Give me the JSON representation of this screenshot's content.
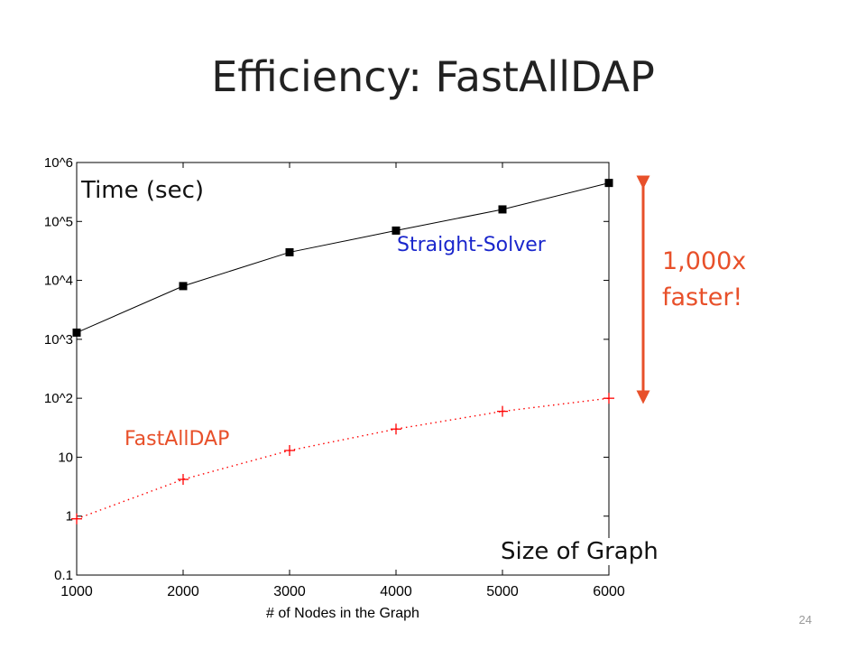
{
  "slide": {
    "title": "Efficiency: FastAllDAP",
    "page_number": "24"
  },
  "annotations": {
    "y_label": "Time (sec)",
    "x_label": "Size of Graph",
    "callout_line1": "1,000x",
    "callout_line2": "faster!"
  },
  "colors": {
    "straight_solver": "#000000",
    "fastalldap": "#ff0000",
    "series_a_label": "#1a26cc",
    "series_b_label": "#e8502a",
    "callout": "#e8502a",
    "axes": "#000000"
  },
  "chart_data": {
    "type": "line",
    "y_scale": "log",
    "xlabel": "# of Nodes in the Graph",
    "ylabel": "",
    "xlim": [
      1000,
      6000
    ],
    "ylim": [
      0.1,
      1000000
    ],
    "x_ticks": [
      1000,
      2000,
      3000,
      4000,
      5000,
      6000
    ],
    "x_tick_labels": [
      "1000",
      "2000",
      "3000",
      "4000",
      "5000",
      "6000"
    ],
    "y_ticks": [
      0.1,
      1,
      10,
      100,
      1000,
      10000,
      100000,
      1000000
    ],
    "y_tick_labels": [
      "0.1",
      "1",
      "10",
      "10^2",
      "10^3",
      "10^4",
      "10^5",
      "10^6"
    ],
    "grid": false,
    "x": [
      1000,
      2000,
      3000,
      4000,
      5000,
      6000
    ],
    "series": [
      {
        "name": "Straight-Solver",
        "values": [
          1300,
          8000,
          30000,
          70000,
          160000,
          450000
        ],
        "color": "#000000",
        "marker": "square",
        "line_style": "solid"
      },
      {
        "name": "FastAllDAP",
        "values": [
          0.9,
          4.2,
          13,
          30,
          60,
          100
        ],
        "color": "#ff0000",
        "marker": "plus",
        "line_style": "dotted"
      }
    ]
  }
}
